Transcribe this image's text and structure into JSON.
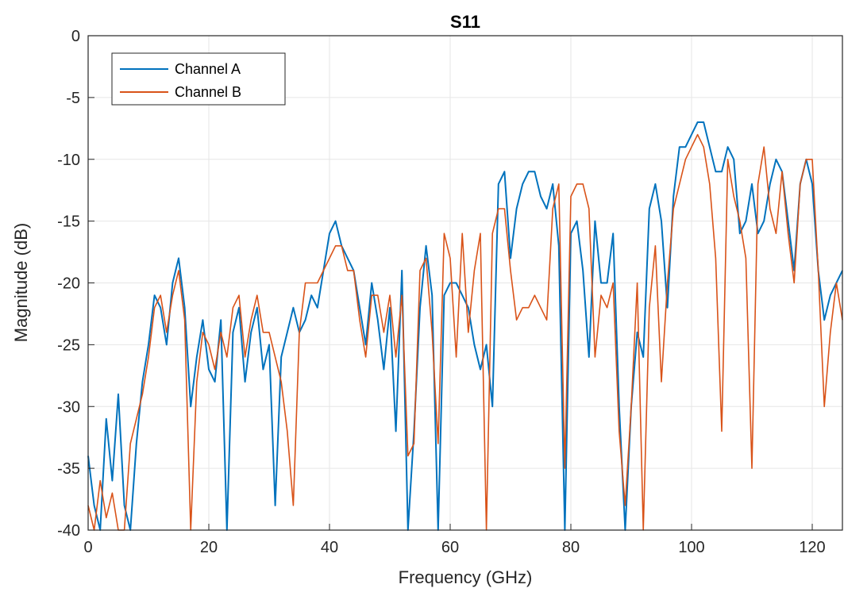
{
  "chart_data": {
    "type": "line",
    "title": "S11",
    "xlabel": "Frequency (GHz)",
    "ylabel": "Magnitude (dB)",
    "xlim": [
      0,
      125
    ],
    "ylim": [
      -40,
      0
    ],
    "xticks": [
      0,
      20,
      40,
      60,
      80,
      100,
      120
    ],
    "yticks": [
      0,
      -5,
      -10,
      -15,
      -20,
      -25,
      -30,
      -35,
      -40
    ],
    "xtick_labels": [
      "0",
      "20",
      "40",
      "60",
      "80",
      "100",
      "120"
    ],
    "ytick_labels": [
      "0",
      "-5",
      "-10",
      "-15",
      "-20",
      "-25",
      "-30",
      "-35",
      "-40"
    ],
    "grid": true,
    "legend_position": "top-left",
    "series": [
      {
        "name": "Channel A",
        "color": "#0072BD",
        "x": [
          0,
          1,
          2,
          3,
          4,
          5,
          6,
          7,
          8,
          9,
          10,
          11,
          12,
          13,
          14,
          15,
          16,
          17,
          18,
          19,
          20,
          21,
          22,
          23,
          24,
          25,
          26,
          27,
          28,
          29,
          30,
          31,
          32,
          33,
          34,
          35,
          36,
          37,
          38,
          39,
          40,
          41,
          42,
          43,
          44,
          45,
          46,
          47,
          48,
          49,
          50,
          51,
          52,
          53,
          54,
          55,
          56,
          57,
          58,
          59,
          60,
          61,
          62,
          63,
          64,
          65,
          66,
          67,
          68,
          69,
          70,
          71,
          72,
          73,
          74,
          75,
          76,
          77,
          78,
          79,
          80,
          81,
          82,
          83,
          84,
          85,
          86,
          87,
          88,
          89,
          90,
          91,
          92,
          93,
          94,
          95,
          96,
          97,
          98,
          99,
          100,
          101,
          102,
          103,
          104,
          105,
          106,
          107,
          108,
          109,
          110,
          111,
          112,
          113,
          114,
          115,
          116,
          117,
          118,
          119,
          120,
          121,
          122,
          123,
          124,
          125
        ],
        "y": [
          -34,
          -38,
          -40,
          -31,
          -36,
          -29,
          -38,
          -40,
          -33,
          -28,
          -25,
          -21,
          -22,
          -25,
          -20,
          -18,
          -22,
          -30,
          -26,
          -23,
          -27,
          -28,
          -23,
          -40,
          -24,
          -22,
          -28,
          -24,
          -22,
          -27,
          -25,
          -38,
          -26,
          -24,
          -22,
          -24,
          -23,
          -21,
          -22,
          -19,
          -16,
          -15,
          -17,
          -18,
          -19,
          -22,
          -25,
          -20,
          -23,
          -27,
          -22,
          -32,
          -19,
          -40,
          -32,
          -22,
          -17,
          -21,
          -40,
          -21,
          -20,
          -20,
          -21,
          -22,
          -25,
          -27,
          -25,
          -30,
          -12,
          -11,
          -18,
          -14,
          -12,
          -11,
          -11,
          -13,
          -14,
          -12,
          -17,
          -40,
          -16,
          -15,
          -19,
          -26,
          -15,
          -20,
          -20,
          -16,
          -30,
          -40,
          -30,
          -24,
          -26,
          -14,
          -12,
          -15,
          -22,
          -13,
          -9,
          -9,
          -8,
          -7,
          -7,
          -9,
          -11,
          -11,
          -9,
          -10,
          -16,
          -15,
          -12,
          -16,
          -15,
          -12,
          -10,
          -11,
          -15,
          -19,
          -12,
          -10,
          -12,
          -19,
          -23,
          -21,
          -20,
          -19
        ]
      },
      {
        "name": "Channel B",
        "color": "#D95319",
        "x": [
          0,
          1,
          2,
          3,
          4,
          5,
          6,
          7,
          8,
          9,
          10,
          11,
          12,
          13,
          14,
          15,
          16,
          17,
          18,
          19,
          20,
          21,
          22,
          23,
          24,
          25,
          26,
          27,
          28,
          29,
          30,
          31,
          32,
          33,
          34,
          35,
          36,
          37,
          38,
          39,
          40,
          41,
          42,
          43,
          44,
          45,
          46,
          47,
          48,
          49,
          50,
          51,
          52,
          53,
          54,
          55,
          56,
          57,
          58,
          59,
          60,
          61,
          62,
          63,
          64,
          65,
          66,
          67,
          68,
          69,
          70,
          71,
          72,
          73,
          74,
          75,
          76,
          77,
          78,
          79,
          80,
          81,
          82,
          83,
          84,
          85,
          86,
          87,
          88,
          89,
          90,
          91,
          92,
          93,
          94,
          95,
          96,
          97,
          98,
          99,
          100,
          101,
          102,
          103,
          104,
          105,
          106,
          107,
          108,
          109,
          110,
          111,
          112,
          113,
          114,
          115,
          116,
          117,
          118,
          119,
          120,
          121,
          122,
          123,
          124,
          125
        ],
        "y": [
          -38,
          -40,
          -36,
          -39,
          -37,
          -40,
          -40,
          -33,
          -31,
          -29,
          -26,
          -22,
          -21,
          -24,
          -21,
          -19,
          -23,
          -40,
          -28,
          -24,
          -25,
          -27,
          -24,
          -26,
          -22,
          -21,
          -26,
          -23,
          -21,
          -24,
          -24,
          -26,
          -28,
          -32,
          -38,
          -24,
          -20,
          -20,
          -20,
          -19,
          -18,
          -17,
          -17,
          -19,
          -19,
          -23,
          -26,
          -21,
          -21,
          -24,
          -21,
          -26,
          -21,
          -34,
          -33,
          -19,
          -18,
          -24,
          -33,
          -16,
          -18,
          -26,
          -16,
          -24,
          -19,
          -16,
          -40,
          -16,
          -14,
          -14,
          -19,
          -23,
          -22,
          -22,
          -21,
          -22,
          -23,
          -14,
          -12,
          -35,
          -13,
          -12,
          -12,
          -14,
          -26,
          -21,
          -22,
          -20,
          -32,
          -38,
          -30,
          -20,
          -40,
          -22,
          -17,
          -28,
          -20,
          -14,
          -12,
          -10,
          -9,
          -8,
          -9,
          -12,
          -18,
          -32,
          -10,
          -13,
          -15,
          -18,
          -35,
          -12,
          -9,
          -14,
          -16,
          -11,
          -16,
          -20,
          -12,
          -10,
          -10,
          -19,
          -30,
          -24,
          -20,
          -23
        ]
      }
    ]
  }
}
